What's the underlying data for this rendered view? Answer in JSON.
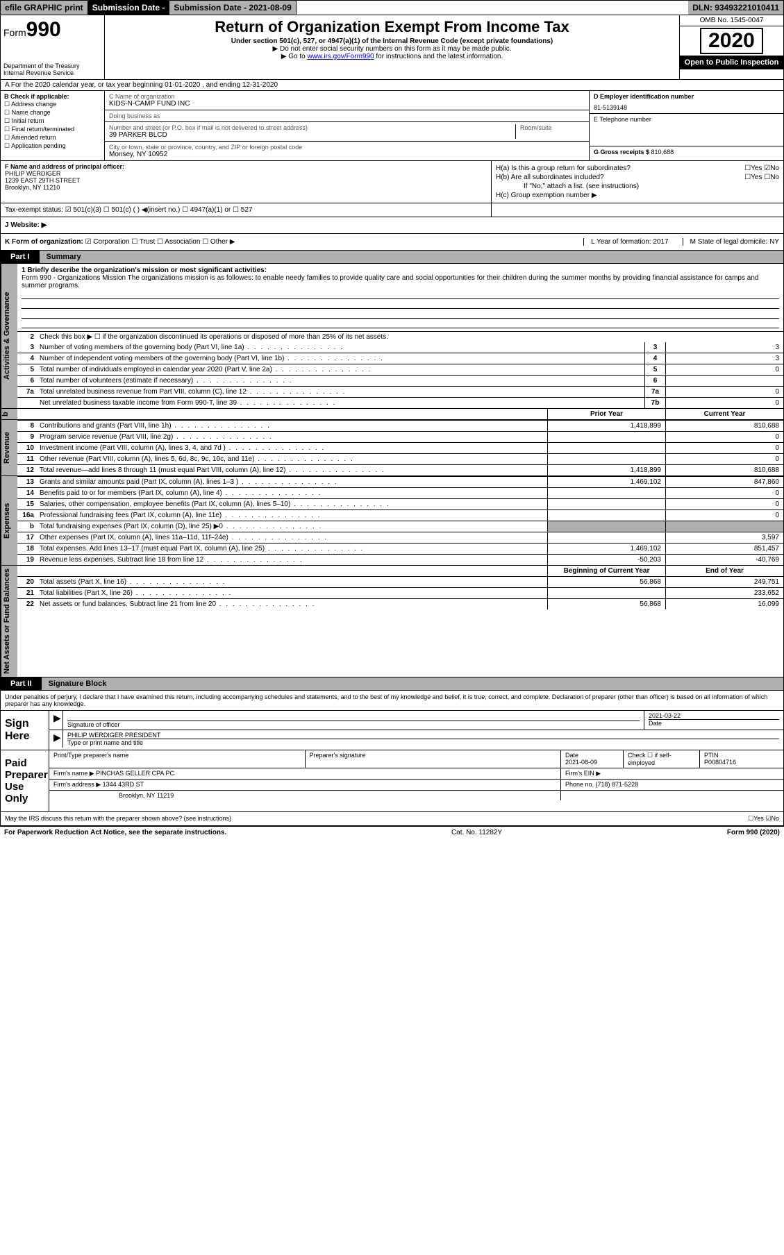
{
  "topbar": {
    "efile": "efile GRAPHIC print",
    "subdate_lbl": "Submission Date - 2021-08-09",
    "dln": "DLN: 93493221010411"
  },
  "header": {
    "form_prefix": "Form",
    "form_num": "990",
    "dept": "Department of the Treasury\nInternal Revenue Service",
    "title": "Return of Organization Exempt From Income Tax",
    "subtitle": "Under section 501(c), 527, or 4947(a)(1) of the Internal Revenue Code (except private foundations)",
    "note1": "▶ Do not enter social security numbers on this form as it may be made public.",
    "note2_pre": "▶ Go to ",
    "note2_link": "www.irs.gov/Form990",
    "note2_post": " for instructions and the latest information.",
    "omb": "OMB No. 1545-0047",
    "year": "2020",
    "open": "Open to Public Inspection"
  },
  "row_a": "A For the 2020 calendar year, or tax year beginning 01-01-2020   , and ending 12-31-2020",
  "col_b": {
    "title": "B Check if applicable:",
    "items": [
      "Address change",
      "Name change",
      "Initial return",
      "Final return/terminated",
      "Amended return",
      "Application pending"
    ]
  },
  "col_c": {
    "name_lbl": "C Name of organization",
    "name": "KIDS-N-CAMP FUND INC",
    "dba_lbl": "Doing business as",
    "dba": "",
    "addr_lbl": "Number and street (or P.O. box if mail is not delivered to street address)",
    "room_lbl": "Room/suite",
    "addr": "39 PARKER BLCD",
    "city_lbl": "City or town, state or province, country, and ZIP or foreign postal code",
    "city": "Monsey, NY  10952"
  },
  "col_d": {
    "ein_lbl": "D Employer identification number",
    "ein": "81-5139148",
    "tel_lbl": "E Telephone number",
    "tel": "",
    "gross_lbl": "G Gross receipts $ ",
    "gross": "810,688"
  },
  "col_f": {
    "lbl": "F Name and address of principal officer:",
    "name": "PHILIP WERDIGER",
    "addr1": "1239 EAST 29TH STREET",
    "addr2": "Brooklyn, NY  11210"
  },
  "col_h": {
    "ha": "H(a)  Is this a group return for subordinates?",
    "ha_ans": "☐Yes ☑No",
    "hb": "H(b)  Are all subordinates included?",
    "hb_ans": "☐Yes ☐No",
    "hb_note": "If \"No,\" attach a list. (see instructions)",
    "hc": "H(c)  Group exemption number ▶"
  },
  "row_tax": {
    "lbl": "Tax-exempt status:",
    "opts": "☑ 501(c)(3)   ☐ 501(c) (  ) ◀(insert no.)   ☐ 4947(a)(1) or   ☐ 527"
  },
  "row_j": "J   Website: ▶",
  "row_k": {
    "lbl": "K Form of organization:",
    "opts": "☑ Corporation  ☐ Trust  ☐ Association  ☐ Other ▶",
    "l": "L Year of formation: 2017",
    "m": "M State of legal domicile: NY"
  },
  "part1": {
    "label": "Part I",
    "title": "Summary"
  },
  "mission": {
    "lbl": "1  Briefly describe the organization's mission or most significant activities:",
    "txt": "Form 990 - Organizations Mission The organizations mission is as followes: to enable needy families to provide quality care and social opportunities for their children during the summer months by providing financial assistance for camps and summer programs."
  },
  "line2": "Check this box ▶ ☐  if the organization discontinued its operations or disposed of more than 25% of its net assets.",
  "vtabs": [
    "Activities & Governance",
    "Revenue",
    "Expenses",
    "Net Assets or Fund Balances"
  ],
  "rows_gov": [
    {
      "n": "3",
      "t": "Number of voting members of the governing body (Part VI, line 1a)",
      "box": "3",
      "v": "3"
    },
    {
      "n": "4",
      "t": "Number of independent voting members of the governing body (Part VI, line 1b)",
      "box": "4",
      "v": "3"
    },
    {
      "n": "5",
      "t": "Total number of individuals employed in calendar year 2020 (Part V, line 2a)",
      "box": "5",
      "v": "0"
    },
    {
      "n": "6",
      "t": "Total number of volunteers (estimate if necessary)",
      "box": "6",
      "v": ""
    },
    {
      "n": "7a",
      "t": "Total unrelated business revenue from Part VIII, column (C), line 12",
      "box": "7a",
      "v": "0"
    },
    {
      "n": "",
      "t": "Net unrelated business taxable income from Form 990-T, line 39",
      "box": "7b",
      "v": "0"
    }
  ],
  "colhdr": {
    "py": "Prior Year",
    "cy": "Current Year"
  },
  "rows_rev": [
    {
      "n": "8",
      "t": "Contributions and grants (Part VIII, line 1h)",
      "py": "1,418,899",
      "cy": "810,688"
    },
    {
      "n": "9",
      "t": "Program service revenue (Part VIII, line 2g)",
      "py": "",
      "cy": "0"
    },
    {
      "n": "10",
      "t": "Investment income (Part VIII, column (A), lines 3, 4, and 7d )",
      "py": "",
      "cy": "0"
    },
    {
      "n": "11",
      "t": "Other revenue (Part VIII, column (A), lines 5, 6d, 8c, 9c, 10c, and 11e)",
      "py": "",
      "cy": "0"
    },
    {
      "n": "12",
      "t": "Total revenue—add lines 8 through 11 (must equal Part VIII, column (A), line 12)",
      "py": "1,418,899",
      "cy": "810,688"
    }
  ],
  "rows_exp": [
    {
      "n": "13",
      "t": "Grants and similar amounts paid (Part IX, column (A), lines 1–3 )",
      "py": "1,469,102",
      "cy": "847,860"
    },
    {
      "n": "14",
      "t": "Benefits paid to or for members (Part IX, column (A), line 4)",
      "py": "",
      "cy": "0"
    },
    {
      "n": "15",
      "t": "Salaries, other compensation, employee benefits (Part IX, column (A), lines 5–10)",
      "py": "",
      "cy": "0"
    },
    {
      "n": "16a",
      "t": "Professional fundraising fees (Part IX, column (A), line 11e)",
      "py": "",
      "cy": "0"
    },
    {
      "n": "b",
      "t": "Total fundraising expenses (Part IX, column (D), line 25) ▶0",
      "py": "shade",
      "cy": "shade"
    },
    {
      "n": "17",
      "t": "Other expenses (Part IX, column (A), lines 11a–11d, 11f–24e)",
      "py": "",
      "cy": "3,597"
    },
    {
      "n": "18",
      "t": "Total expenses. Add lines 13–17 (must equal Part IX, column (A), line 25)",
      "py": "1,469,102",
      "cy": "851,457"
    },
    {
      "n": "19",
      "t": "Revenue less expenses. Subtract line 18 from line 12",
      "py": "-50,203",
      "cy": "-40,769"
    }
  ],
  "colhdr2": {
    "py": "Beginning of Current Year",
    "cy": "End of Year"
  },
  "rows_net": [
    {
      "n": "20",
      "t": "Total assets (Part X, line 16)",
      "py": "56,868",
      "cy": "249,751"
    },
    {
      "n": "21",
      "t": "Total liabilities (Part X, line 26)",
      "py": "",
      "cy": "233,652"
    },
    {
      "n": "22",
      "t": "Net assets or fund balances. Subtract line 21 from line 20",
      "py": "56,868",
      "cy": "16,099"
    }
  ],
  "part2": {
    "label": "Part II",
    "title": "Signature Block"
  },
  "sig_decl": "Under penalties of perjury, I declare that I have examined this return, including accompanying schedules and statements, and to the best of my knowledge and belief, it is true, correct, and complete. Declaration of preparer (other than officer) is based on all information of which preparer has any knowledge.",
  "sign_here": {
    "lbl": "Sign Here",
    "sig_lbl": "Signature of officer",
    "date": "2021-03-22",
    "date_lbl": "Date",
    "name": "PHILIP WERDIGER  PRESIDENT",
    "name_lbl": "Type or print name and title"
  },
  "paid": {
    "lbl": "Paid Preparer Use Only",
    "r1": {
      "c1": "Print/Type preparer's name",
      "c2": "Preparer's signature",
      "c3": "Date\n2021-08-09",
      "c4": "Check ☐ if self-employed",
      "c5": "PTIN\nP00804716"
    },
    "r2": {
      "c1": "Firm's name    ▶ PINCHAS GELLER CPA PC",
      "c2": "Firm's EIN ▶"
    },
    "r3": {
      "c1": "Firm's address ▶ 1344 43RD ST",
      "c2": "Phone no. (718) 871-5228"
    },
    "r4": {
      "c1": "Brooklyn, NY  11219",
      "c2": ""
    }
  },
  "irs_discuss": "May the IRS discuss this return with the preparer shown above? (see instructions)",
  "irs_ans": "☐Yes ☑No",
  "footer": {
    "left": "For Paperwork Reduction Act Notice, see the separate instructions.",
    "mid": "Cat. No. 11282Y",
    "right": "Form 990 (2020)"
  },
  "colors": {
    "header_bg": "#b0b0b0",
    "black": "#000000",
    "link": "#0000cc",
    "check": "#0066cc"
  }
}
